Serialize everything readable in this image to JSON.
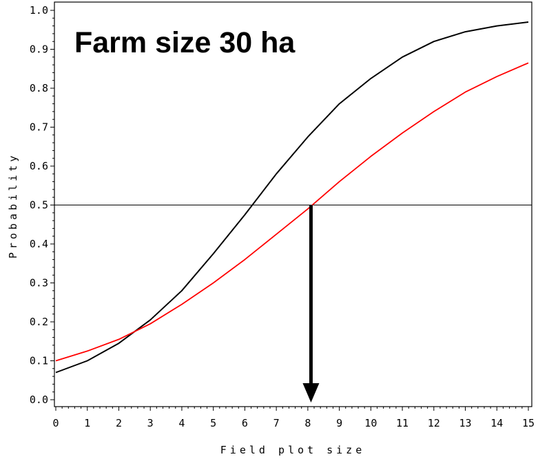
{
  "chart_data": {
    "type": "line",
    "title": "Farm size 30 ha",
    "xlabel": "Field plot size",
    "ylabel": "Probability",
    "xlim": [
      0,
      15
    ],
    "ylim": [
      0.0,
      1.0
    ],
    "x_ticks": [
      "0",
      "1",
      "2",
      "3",
      "4",
      "5",
      "6",
      "7",
      "8",
      "9",
      "10",
      "11",
      "12",
      "13",
      "14",
      "15"
    ],
    "y_ticks": [
      "0.0",
      "0.1",
      "0.2",
      "0.3",
      "0.4",
      "0.5",
      "0.6",
      "0.7",
      "0.8",
      "0.9",
      "1.0"
    ],
    "reference_line_y": 0.5,
    "arrow_x": 8.1,
    "grid": false,
    "series": [
      {
        "color": "#000000",
        "x": [
          0,
          1,
          2,
          3,
          4,
          5,
          6,
          7,
          8,
          9,
          10,
          11,
          12,
          13,
          14,
          15
        ],
        "values": [
          0.07,
          0.1,
          0.145,
          0.205,
          0.28,
          0.375,
          0.475,
          0.58,
          0.675,
          0.76,
          0.825,
          0.88,
          0.92,
          0.945,
          0.96,
          0.97
        ]
      },
      {
        "color": "#ff0000",
        "x": [
          0,
          1,
          2,
          3,
          4,
          5,
          6,
          7,
          8,
          9,
          10,
          11,
          12,
          13,
          14,
          15
        ],
        "values": [
          0.1,
          0.125,
          0.155,
          0.195,
          0.245,
          0.3,
          0.36,
          0.425,
          0.49,
          0.56,
          0.625,
          0.685,
          0.74,
          0.79,
          0.83,
          0.865
        ]
      }
    ]
  }
}
